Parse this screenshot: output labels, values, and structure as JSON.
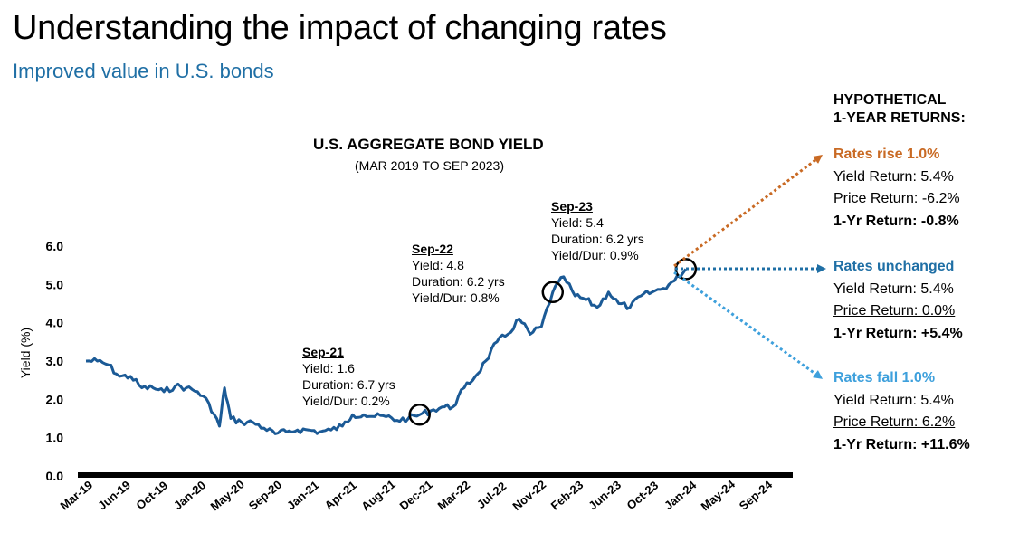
{
  "header": {
    "title": "Understanding the impact of changing rates",
    "subtitle": "Improved value in U.S. bonds"
  },
  "chart_data": {
    "type": "line",
    "title": "U.S. AGGREGATE BOND YIELD",
    "subtitle": "(MAR 2019 TO SEP 2023)",
    "ylabel": "Yield (%)",
    "xlabel": "",
    "ylim": [
      0.0,
      6.0
    ],
    "yticks": [
      "0.0",
      "1.0",
      "2.0",
      "3.0",
      "4.0",
      "5.0",
      "6.0"
    ],
    "xticks": [
      "Mar-19",
      "Jun-19",
      "Oct-19",
      "Jan-20",
      "May-20",
      "Sep-20",
      "Jan-21",
      "Apr-21",
      "Aug-21",
      "Dec-21",
      "Mar-22",
      "Jul-22",
      "Nov-22",
      "Feb-23",
      "Jun-23",
      "Oct-23",
      "Jan-24",
      "May-24",
      "Sep-24"
    ],
    "grid": false,
    "legend": "none",
    "series": [
      {
        "color": "#1b5a96",
        "points": [
          [
            "2019-03",
            3.0
          ],
          [
            "2019-04",
            3.0
          ],
          [
            "2019-05",
            2.9
          ],
          [
            "2019-06",
            2.6
          ],
          [
            "2019-07",
            2.6
          ],
          [
            "2019-08",
            2.3
          ],
          [
            "2019-09",
            2.3
          ],
          [
            "2019-10",
            2.2
          ],
          [
            "2019-11",
            2.35
          ],
          [
            "2019-12",
            2.3
          ],
          [
            "2020-01",
            2.2
          ],
          [
            "2020-02",
            1.9
          ],
          [
            "2020-03",
            1.3
          ],
          [
            "2020-03-15",
            2.3
          ],
          [
            "2020-04",
            1.5
          ],
          [
            "2020-05",
            1.4
          ],
          [
            "2020-06",
            1.4
          ],
          [
            "2020-07",
            1.25
          ],
          [
            "2020-08",
            1.1
          ],
          [
            "2020-09",
            1.15
          ],
          [
            "2020-10",
            1.2
          ],
          [
            "2020-11",
            1.2
          ],
          [
            "2020-12",
            1.15
          ],
          [
            "2021-01",
            1.2
          ],
          [
            "2021-02",
            1.3
          ],
          [
            "2021-03",
            1.6
          ],
          [
            "2021-04",
            1.6
          ],
          [
            "2021-05",
            1.55
          ],
          [
            "2021-06",
            1.55
          ],
          [
            "2021-07",
            1.45
          ],
          [
            "2021-08",
            1.5
          ],
          [
            "2021-09",
            1.6
          ],
          [
            "2021-10",
            1.7
          ],
          [
            "2021-11",
            1.8
          ],
          [
            "2021-12",
            1.8
          ],
          [
            "2022-01",
            2.3
          ],
          [
            "2022-02",
            2.6
          ],
          [
            "2022-03",
            3.0
          ],
          [
            "2022-04",
            3.5
          ],
          [
            "2022-05",
            3.7
          ],
          [
            "2022-06",
            4.1
          ],
          [
            "2022-07",
            3.7
          ],
          [
            "2022-08",
            3.9
          ],
          [
            "2022-09",
            4.8
          ],
          [
            "2022-10",
            5.2
          ],
          [
            "2022-11",
            4.7
          ],
          [
            "2022-12",
            4.6
          ],
          [
            "2023-01",
            4.4
          ],
          [
            "2023-02",
            4.8
          ],
          [
            "2023-03",
            4.5
          ],
          [
            "2023-04",
            4.4
          ],
          [
            "2023-05",
            4.7
          ],
          [
            "2023-06",
            4.8
          ],
          [
            "2023-07",
            4.9
          ],
          [
            "2023-08",
            5.1
          ],
          [
            "2023-09",
            5.4
          ]
        ]
      }
    ],
    "annotations": [
      {
        "label": "Sep-21",
        "lines": [
          "Yield: 1.6",
          "Duration: 6.7 yrs",
          "Yield/Dur: 0.2%"
        ]
      },
      {
        "label": "Sep-22",
        "lines": [
          "Yield: 4.8",
          "Duration: 6.2 yrs",
          "Yield/Dur: 0.8%"
        ]
      },
      {
        "label": "Sep-23",
        "lines": [
          "Yield: 5.4",
          "Duration: 6.2 yrs",
          "Yield/Dur: 0.9%"
        ]
      }
    ]
  },
  "returns_panel": {
    "heading_line1": "HYPOTHETICAL",
    "heading_line2": "1-YEAR RETURNS:",
    "scenarios": [
      {
        "name": "Rates rise 1.0%",
        "color": "#c96a24",
        "yield_return": "Yield Return: 5.4%",
        "price_return": "Price Return: -6.2%",
        "total_return": "1-Yr Return: -0.8%"
      },
      {
        "name": "Rates unchanged",
        "color": "#1f6fa5",
        "yield_return": "Yield Return: 5.4%",
        "price_return": "Price Return: 0.0%",
        "total_return": "1-Yr Return: +5.4%"
      },
      {
        "name": "Rates fall 1.0%",
        "color": "#3ea0dc",
        "yield_return": "Yield Return: 5.4%",
        "price_return": "Price Return: 6.2%",
        "total_return": "1-Yr Return: +11.6%"
      }
    ]
  }
}
